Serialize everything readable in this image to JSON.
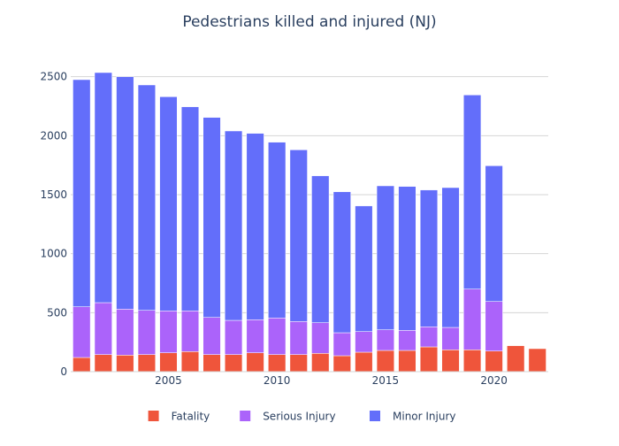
{
  "chart_data": {
    "type": "bar",
    "stacked": true,
    "title": "Pedestrians killed and injured (NJ)",
    "xlabel": "",
    "ylabel": "",
    "x": [
      2001,
      2002,
      2003,
      2004,
      2005,
      2006,
      2007,
      2008,
      2009,
      2010,
      2011,
      2012,
      2013,
      2014,
      2015,
      2016,
      2017,
      2018,
      2019,
      2020,
      2021,
      2022
    ],
    "x_ticks": [
      2005,
      2010,
      2015,
      2020
    ],
    "ylim": [
      0,
      2700
    ],
    "y_ticks": [
      0,
      500,
      1000,
      1500,
      2000,
      2500
    ],
    "grid": true,
    "legend_position": "bottom",
    "series": [
      {
        "name": "Fatality",
        "color": "#EF553B",
        "values": [
          120,
          145,
          140,
          145,
          160,
          170,
          145,
          145,
          160,
          145,
          145,
          155,
          135,
          165,
          180,
          180,
          210,
          185,
          185,
          175,
          220,
          195
        ]
      },
      {
        "name": "Serious Injury",
        "color": "#AB63FA",
        "values": [
          430,
          440,
          390,
          375,
          355,
          345,
          315,
          290,
          280,
          310,
          280,
          260,
          195,
          175,
          175,
          170,
          170,
          190,
          515,
          420,
          0,
          0
        ]
      },
      {
        "name": "Minor Injury",
        "color": "#636EFA",
        "values": [
          1925,
          1950,
          1970,
          1910,
          1815,
          1730,
          1695,
          1605,
          1580,
          1490,
          1455,
          1245,
          1195,
          1065,
          1220,
          1220,
          1160,
          1185,
          1645,
          1150,
          0,
          0
        ]
      }
    ]
  }
}
